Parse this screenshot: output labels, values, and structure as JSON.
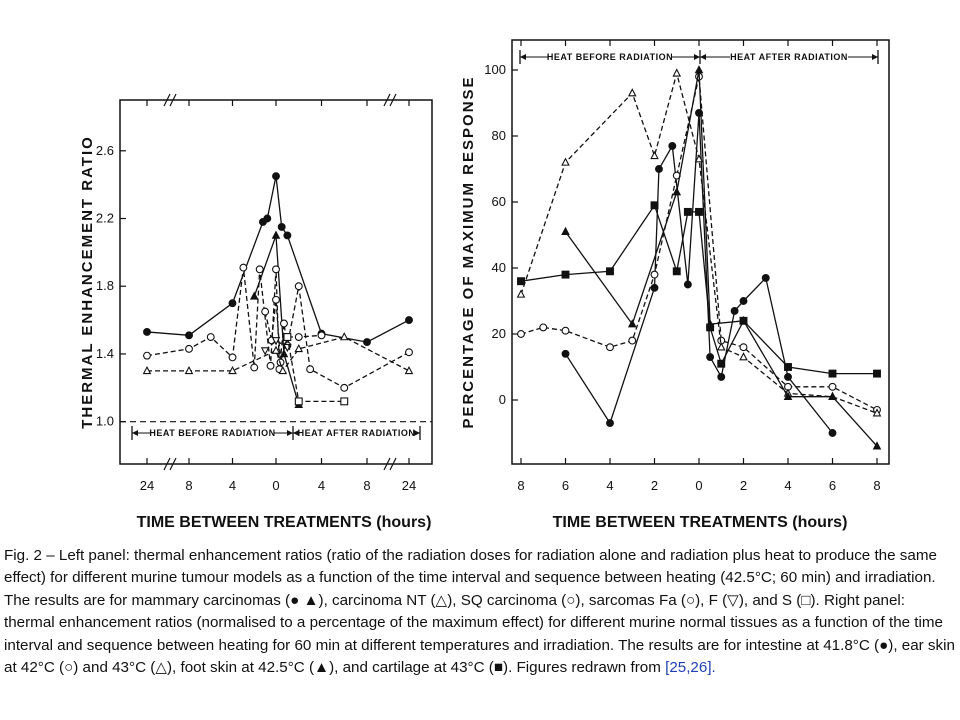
{
  "caption": {
    "text": "Fig. 2 – Left panel: thermal enhancement ratios (ratio of the radiation doses for radiation alone and radiation plus heat to produce the same effect) for different murine tumour models as a function of the time interval and sequence between heating (42.5°C; 60 min) and irradiation. The results are for mammary carcinomas (● ▲), carcinoma NT (△), SQ carcinoma (○), sarcomas Fa (○), F (▽), and S (□). Right panel: thermal enhancement ratios (normalised to a percentage of the maximum effect) for different murine normal tissues as a function of the time interval and sequence between heating for 60 min at different temperatures and irradiation. The results are for intestine at 41.8°C (●), ear skin at 42°C (○) and 43°C (△), foot skin at 42.5°C (▲), and cartilage at 43°C (■). Figures redrawn from",
    "refs": "[25,26]."
  },
  "chart_data": [
    {
      "type": "line",
      "panel": "left",
      "ylabel": "THERMAL ENHANCEMENT RATIO",
      "xlabel": "TIME BETWEEN TREATMENTS (hours)",
      "yticks": [
        1.0,
        1.4,
        1.8,
        2.2,
        2.6
      ],
      "ylim": [
        0.75,
        2.9
      ],
      "x_is_signed_hours": "negative = heat before radiation, positive = heat after radiation",
      "xtick_labels": [
        "24",
        "8",
        "4",
        "0",
        "4",
        "8",
        "24"
      ],
      "band_labels": [
        "HEAT BEFORE RADIATION",
        "HEAT AFTER RADIATION"
      ],
      "reference_line": 1.0,
      "series": [
        {
          "marker": "circle-filled",
          "dash": "solid",
          "points": [
            [
              -24,
              1.53
            ],
            [
              -8,
              1.51
            ],
            [
              -4,
              1.7
            ],
            [
              -1.2,
              2.18
            ],
            [
              -0.8,
              2.2
            ],
            [
              0,
              2.45
            ],
            [
              0.5,
              2.15
            ],
            [
              1,
              2.1
            ],
            [
              4,
              1.52
            ],
            [
              8,
              1.47
            ],
            [
              24,
              1.6
            ]
          ]
        },
        {
          "marker": "triangle-filled",
          "dash": "solid",
          "points": [
            [
              -2,
              1.74
            ],
            [
              0,
              2.1
            ],
            [
              0.7,
              1.4
            ],
            [
              2,
              1.1
            ]
          ]
        },
        {
          "marker": "circle-open",
          "dash": "dashed",
          "points": [
            [
              -24,
              1.39
            ],
            [
              -8,
              1.43
            ],
            [
              -6,
              1.5
            ],
            [
              -4,
              1.38
            ],
            [
              -3,
              1.91
            ],
            [
              -2,
              1.32
            ],
            [
              -1.5,
              1.9
            ],
            [
              -0.5,
              1.33
            ],
            [
              0,
              1.9
            ],
            [
              0.3,
              1.31
            ],
            [
              0.7,
              1.58
            ],
            [
              1,
              1.45
            ],
            [
              2,
              1.8
            ],
            [
              3,
              1.31
            ],
            [
              6,
              1.2
            ],
            [
              24,
              1.41
            ]
          ]
        },
        {
          "marker": "circle-open",
          "dash": "dashed",
          "points": [
            [
              -1,
              1.65
            ],
            [
              -0.4,
              1.48
            ],
            [
              0,
              1.72
            ],
            [
              0.4,
              1.35
            ],
            [
              1,
              1.5
            ],
            [
              2,
              1.5
            ],
            [
              4,
              1.51
            ]
          ]
        },
        {
          "marker": "triangle-open",
          "dash": "dashed",
          "points": [
            [
              -24,
              1.3
            ],
            [
              -8,
              1.3
            ],
            [
              -4,
              1.3
            ],
            [
              0,
              1.42
            ],
            [
              0.6,
              1.3
            ],
            [
              2,
              1.43
            ],
            [
              6,
              1.5
            ],
            [
              24,
              1.3
            ]
          ]
        },
        {
          "marker": "triangle-down-open",
          "dash": "dashed",
          "points": [
            [
              -1,
              1.42
            ],
            [
              0,
              1.48
            ],
            [
              1,
              1.44
            ]
          ]
        },
        {
          "marker": "square-open",
          "dash": "dashed",
          "points": [
            [
              1,
              1.5
            ],
            [
              2,
              1.12
            ],
            [
              6,
              1.12
            ]
          ]
        }
      ]
    },
    {
      "type": "line",
      "panel": "right",
      "ylabel": "PERCENTAGE OF MAXIMUM RESPONSE",
      "xlabel": "TIME BETWEEN TREATMENTS (hours)",
      "yticks": [
        0,
        20,
        40,
        60,
        80,
        100
      ],
      "ylim": [
        -18,
        110
      ],
      "xlim": [
        -8,
        8
      ],
      "xtick_labels": [
        "8",
        "6",
        "4",
        "2",
        "0",
        "2",
        "4",
        "6",
        "8"
      ],
      "band_labels": [
        "HEAT BEFORE RADIATION",
        "HEAT AFTER RADIATION"
      ],
      "series": [
        {
          "marker": "circle-filled",
          "dash": "solid",
          "points": [
            [
              -6,
              14
            ],
            [
              -4,
              -7
            ],
            [
              -2,
              34
            ],
            [
              -1.8,
              70
            ],
            [
              -1.2,
              77
            ],
            [
              -0.5,
              35
            ],
            [
              0,
              87
            ],
            [
              0.5,
              13
            ],
            [
              1,
              7
            ],
            [
              1.6,
              27
            ],
            [
              2,
              30
            ],
            [
              3,
              37
            ],
            [
              4,
              7
            ],
            [
              6,
              -10
            ]
          ]
        },
        {
          "marker": "circle-open",
          "dash": "dashed",
          "points": [
            [
              -8,
              20
            ],
            [
              -7,
              22
            ],
            [
              -6,
              21
            ],
            [
              -4,
              16
            ],
            [
              -3,
              18
            ],
            [
              -2,
              38
            ],
            [
              -1,
              68
            ],
            [
              0,
              98
            ],
            [
              1,
              18
            ],
            [
              2,
              16
            ],
            [
              4,
              4
            ],
            [
              6,
              4
            ],
            [
              8,
              -3
            ]
          ]
        },
        {
          "marker": "triangle-open",
          "dash": "dashed",
          "points": [
            [
              -8,
              32
            ],
            [
              -6,
              72
            ],
            [
              -3,
              93
            ],
            [
              -2,
              74
            ],
            [
              -1,
              99
            ],
            [
              0,
              73
            ],
            [
              1,
              16
            ],
            [
              2,
              13
            ],
            [
              4,
              2
            ],
            [
              6,
              1
            ],
            [
              8,
              -4
            ]
          ]
        },
        {
          "marker": "triangle-filled",
          "dash": "solid",
          "points": [
            [
              -6,
              51
            ],
            [
              -3,
              23
            ],
            [
              -1,
              63
            ],
            [
              0,
              100
            ],
            [
              0.5,
              23
            ],
            [
              2,
              24
            ],
            [
              4,
              1
            ],
            [
              6,
              1
            ],
            [
              8,
              -14
            ]
          ]
        },
        {
          "marker": "square-filled",
          "dash": "solid",
          "points": [
            [
              -8,
              36
            ],
            [
              -6,
              38
            ],
            [
              -4,
              39
            ],
            [
              -2,
              59
            ],
            [
              -1,
              39
            ],
            [
              -0.5,
              57
            ],
            [
              0,
              57
            ],
            [
              0.5,
              22
            ],
            [
              1,
              11
            ],
            [
              2,
              24
            ],
            [
              4,
              10
            ],
            [
              6,
              8
            ],
            [
              8,
              8
            ]
          ]
        }
      ]
    }
  ]
}
